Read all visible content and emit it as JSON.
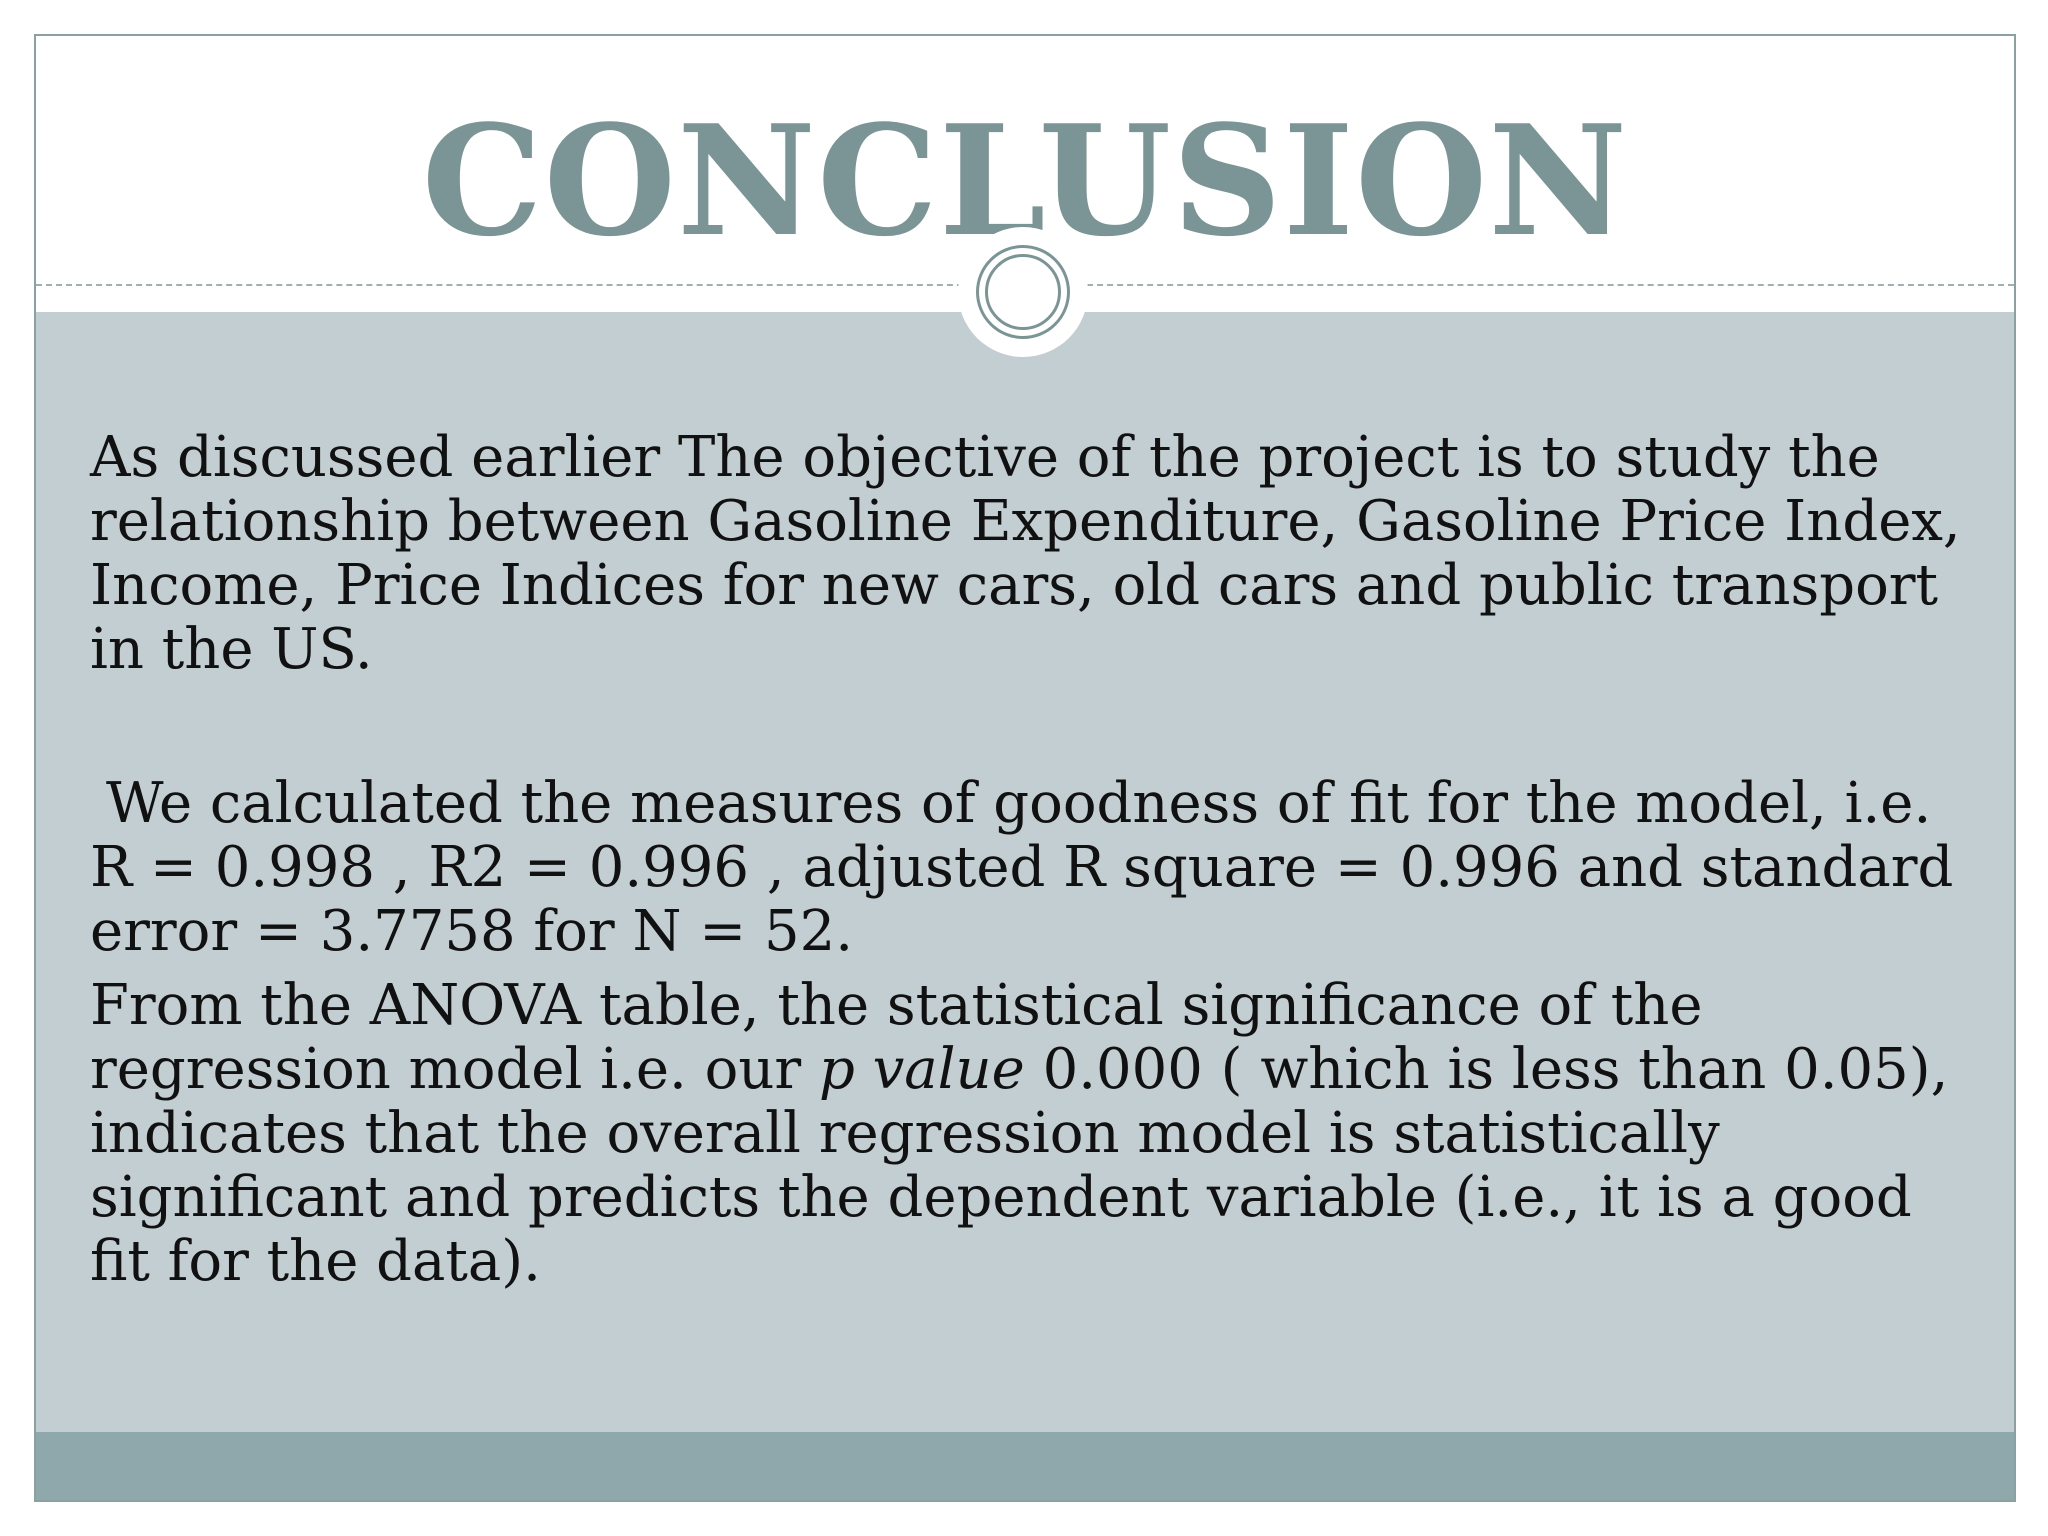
{
  "slide": {
    "title": "CONCLUSION",
    "paragraph1": "As discussed earlier The objective of the project is to study the relationship between Gasoline Expenditure, Gasoline Price Index, Income, Price Indices for new cars, old cars and public transport in the US.",
    "paragraph2": "We calculated the measures of goodness of fit for the model, i.e. R = 0.998 , R2 = 0.996 , adjusted R square = 0.996 and standard error = 3.7758 for N = 52.",
    "paragraph3": {
      "before_italic": "From the ANOVA table, the statistical significance of the regression model  i.e. our ",
      "italic": "p value",
      "after_italic": " 0.000 ( which is less than 0.05), indicates that the overall regression model is statistically significant and predicts the dependent variable (i.e., it is a good fit for the data)."
    }
  },
  "colors": {
    "title": "#7b9495",
    "panel": "#c3ced2",
    "footer": "#8fa8ab",
    "border": "#8aa1a2",
    "text": "#111111"
  }
}
